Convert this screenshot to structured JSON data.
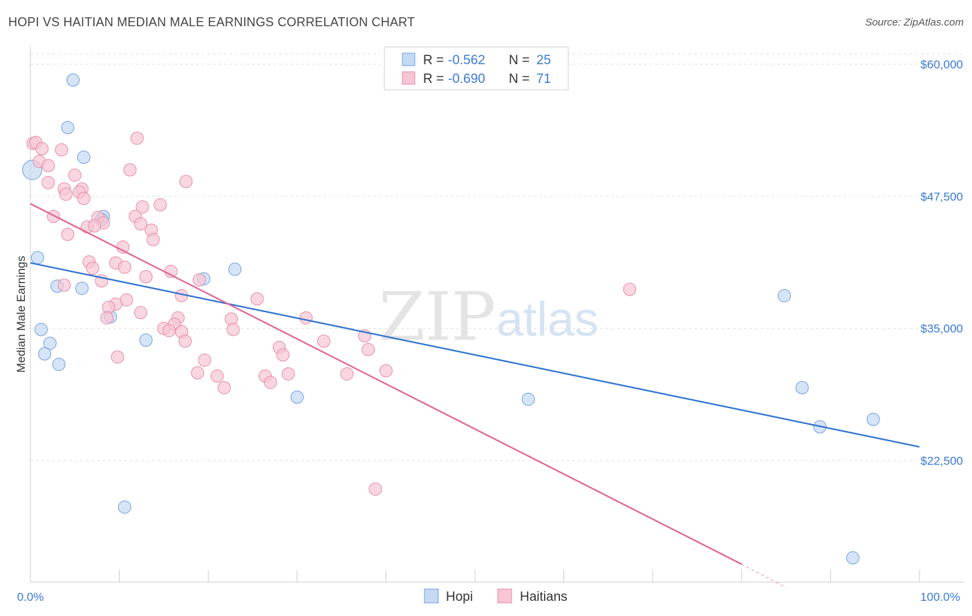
{
  "title": "HOPI VS HAITIAN MEDIAN MALE EARNINGS CORRELATION CHART",
  "source": "Source: ZipAtlas.com",
  "watermark": {
    "zip": "ZIP",
    "atlas": "atlas"
  },
  "chart_data": {
    "type": "scatter",
    "ylabel": "Median Male Earnings",
    "xlim": [
      0,
      100
    ],
    "ylim": [
      11000,
      61500
    ],
    "x_tick_labels": {
      "left": "0.0%",
      "right": "100.0%"
    },
    "y_ticks": [
      {
        "value": 60000,
        "label": "$60,000"
      },
      {
        "value": 47500,
        "label": "$47,500"
      },
      {
        "value": 35000,
        "label": "$35,000"
      },
      {
        "value": 22500,
        "label": "$22,500"
      }
    ],
    "legend": {
      "rows": [
        {
          "r_label": "R =",
          "r": "-0.562",
          "n_label": "N =",
          "n": "25"
        },
        {
          "r_label": "R =",
          "r": "-0.690",
          "n_label": "N =",
          "n": "71"
        }
      ]
    },
    "series": [
      {
        "name": "Hopi",
        "color": "#6f9fe0",
        "fill": "#c5d9f4",
        "line_color": "#2f74d0",
        "trend": {
          "x": [
            0,
            100
          ],
          "y": [
            41200,
            23800
          ]
        },
        "points": [
          [
            0.2,
            50000
          ],
          [
            4.8,
            58500
          ],
          [
            4.2,
            54000
          ],
          [
            6.0,
            51200
          ],
          [
            8.2,
            45600
          ],
          [
            8.0,
            45300
          ],
          [
            0.8,
            41700
          ],
          [
            3.0,
            39000
          ],
          [
            5.8,
            38800
          ],
          [
            9.0,
            36100
          ],
          [
            1.2,
            34900
          ],
          [
            2.2,
            33600
          ],
          [
            1.6,
            32600
          ],
          [
            3.2,
            31600
          ],
          [
            13.0,
            33900
          ],
          [
            19.5,
            39700
          ],
          [
            23.0,
            40600
          ],
          [
            30.0,
            28500
          ],
          [
            56.0,
            28300
          ],
          [
            84.8,
            38100
          ],
          [
            86.8,
            29400
          ],
          [
            88.8,
            25700
          ],
          [
            94.8,
            26400
          ],
          [
            10.6,
            18100
          ],
          [
            92.5,
            13300
          ]
        ]
      },
      {
        "name": "Haitians",
        "color": "#e98aa8",
        "fill": "#f7c6d4",
        "line_color": "#e06593",
        "trend": {
          "x": [
            0,
            80
          ],
          "y": [
            46800,
            12700
          ]
        },
        "trend_dashed": {
          "x": [
            80,
            85
          ],
          "y": [
            12700,
            10500
          ]
        },
        "points": [
          [
            0.3,
            52500
          ],
          [
            0.6,
            52600
          ],
          [
            1.3,
            52000
          ],
          [
            3.5,
            51900
          ],
          [
            1.0,
            50800
          ],
          [
            2.0,
            50400
          ],
          [
            12.0,
            53000
          ],
          [
            11.2,
            50000
          ],
          [
            5.0,
            49500
          ],
          [
            17.5,
            48900
          ],
          [
            2.0,
            48800
          ],
          [
            3.8,
            48200
          ],
          [
            5.8,
            48200
          ],
          [
            4.0,
            47700
          ],
          [
            5.5,
            47900
          ],
          [
            6.0,
            47300
          ],
          [
            14.6,
            46700
          ],
          [
            12.6,
            46500
          ],
          [
            2.6,
            45600
          ],
          [
            11.8,
            45600
          ],
          [
            7.6,
            45500
          ],
          [
            8.2,
            45000
          ],
          [
            6.4,
            44600
          ],
          [
            7.2,
            44700
          ],
          [
            12.4,
            44900
          ],
          [
            13.6,
            44300
          ],
          [
            4.2,
            43900
          ],
          [
            13.8,
            43400
          ],
          [
            10.4,
            42700
          ],
          [
            6.6,
            41300
          ],
          [
            9.6,
            41200
          ],
          [
            7.0,
            40700
          ],
          [
            10.6,
            40800
          ],
          [
            15.8,
            40400
          ],
          [
            13.0,
            39900
          ],
          [
            19.0,
            39600
          ],
          [
            3.8,
            39100
          ],
          [
            8.0,
            39500
          ],
          [
            17.0,
            38100
          ],
          [
            10.8,
            37700
          ],
          [
            9.6,
            37300
          ],
          [
            8.8,
            37000
          ],
          [
            8.6,
            36000
          ],
          [
            16.6,
            36000
          ],
          [
            22.6,
            35900
          ],
          [
            16.2,
            35400
          ],
          [
            15.0,
            35000
          ],
          [
            15.6,
            34800
          ],
          [
            17.0,
            34700
          ],
          [
            22.8,
            34900
          ],
          [
            17.4,
            33800
          ],
          [
            33.0,
            33800
          ],
          [
            37.6,
            34300
          ],
          [
            28.0,
            33200
          ],
          [
            38.0,
            33000
          ],
          [
            28.4,
            32500
          ],
          [
            9.8,
            32300
          ],
          [
            19.6,
            32000
          ],
          [
            40.0,
            31000
          ],
          [
            18.8,
            30800
          ],
          [
            21.0,
            30500
          ],
          [
            26.4,
            30500
          ],
          [
            29.0,
            30700
          ],
          [
            35.6,
            30700
          ],
          [
            27.0,
            29900
          ],
          [
            21.8,
            29400
          ],
          [
            67.4,
            38700
          ],
          [
            38.8,
            19800
          ],
          [
            12.4,
            36500
          ],
          [
            25.5,
            37800
          ],
          [
            31.0,
            36000
          ]
        ]
      }
    ]
  }
}
